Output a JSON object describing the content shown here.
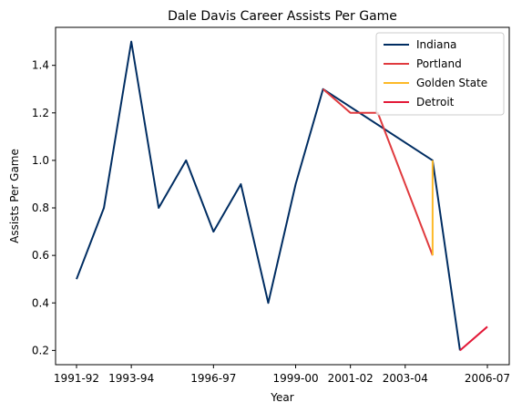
{
  "chart_data": {
    "type": "line",
    "title": "Dale Davis  Career Assists Per Game",
    "xlabel": "Year",
    "ylabel": "Assists Per Game",
    "x_tick_labels": [
      "1991-92",
      "1993-94",
      "1996-97",
      "1999-00",
      "2001-02",
      "2003-04",
      "2006-07"
    ],
    "y_ticks": [
      0.2,
      0.4,
      0.6,
      0.8,
      1.0,
      1.2,
      1.4
    ],
    "y_tick_labels": [
      "0.2",
      "0.4",
      "0.6",
      "0.8",
      "1.0",
      "1.2",
      "1.4"
    ],
    "ylim": [
      0.14,
      1.56
    ],
    "grid": false,
    "legend_position": "top-right",
    "series": [
      {
        "name": "Indiana",
        "color": "#002D62",
        "points": [
          {
            "x": "1991-92",
            "y": 0.5
          },
          {
            "x": "1992-93",
            "y": 0.8
          },
          {
            "x": "1993-94",
            "y": 1.5
          },
          {
            "x": "1994-95",
            "y": 0.8
          },
          {
            "x": "1995-96",
            "y": 1.0
          },
          {
            "x": "1996-97",
            "y": 0.7
          },
          {
            "x": "1997-98",
            "y": 0.9
          },
          {
            "x": "1998-99",
            "y": 0.4
          },
          {
            "x": "1999-00",
            "y": 0.9
          },
          {
            "x": "2000-01",
            "y": 1.3
          },
          {
            "x": "2004-05",
            "y": 1.0
          },
          {
            "x": "2005-06",
            "y": 0.2
          }
        ]
      },
      {
        "name": "Portland",
        "color": "#E03A3E",
        "points": [
          {
            "x": "2000-01",
            "y": 1.3
          },
          {
            "x": "2001-02",
            "y": 1.2
          },
          {
            "x": "2002-03",
            "y": 1.2
          },
          {
            "x": "2004-05",
            "y": 0.6
          }
        ]
      },
      {
        "name": "Golden State",
        "color": "#FDB927",
        "points": [
          {
            "x": "2004-05",
            "y": 0.6
          },
          {
            "x": "2004-05",
            "y": 1.0
          }
        ]
      },
      {
        "name": "Detroit",
        "color": "#E31837",
        "points": [
          {
            "x": "2005-06",
            "y": 0.2
          },
          {
            "x": "2006-07",
            "y": 0.3
          }
        ]
      }
    ]
  }
}
